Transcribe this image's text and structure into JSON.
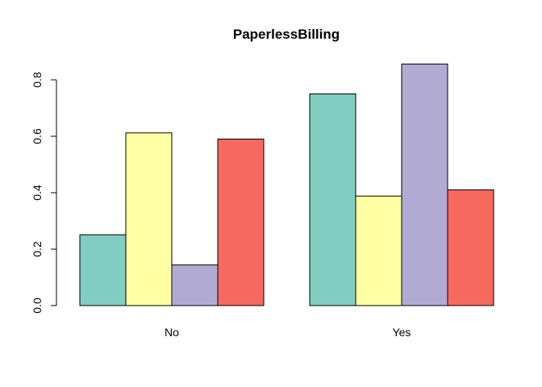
{
  "chart_data": {
    "type": "bar",
    "title": "PaperlessBilling",
    "xlabel": "",
    "ylabel": "",
    "categories": [
      "No",
      "Yes"
    ],
    "ylim": [
      0,
      0.8
    ],
    "yticks": [
      "0.0",
      "0.2",
      "0.4",
      "0.6",
      "0.8"
    ],
    "grid": false,
    "legend": "none",
    "series": [
      {
        "color": "#80cdc1",
        "values": [
          0.251,
          0.75
        ]
      },
      {
        "color": "#ffffa3",
        "values": [
          0.612,
          0.388
        ]
      },
      {
        "color": "#b1abd3",
        "values": [
          0.144,
          0.856
        ]
      },
      {
        "color": "#f7685f",
        "values": [
          0.59,
          0.41
        ]
      }
    ]
  }
}
